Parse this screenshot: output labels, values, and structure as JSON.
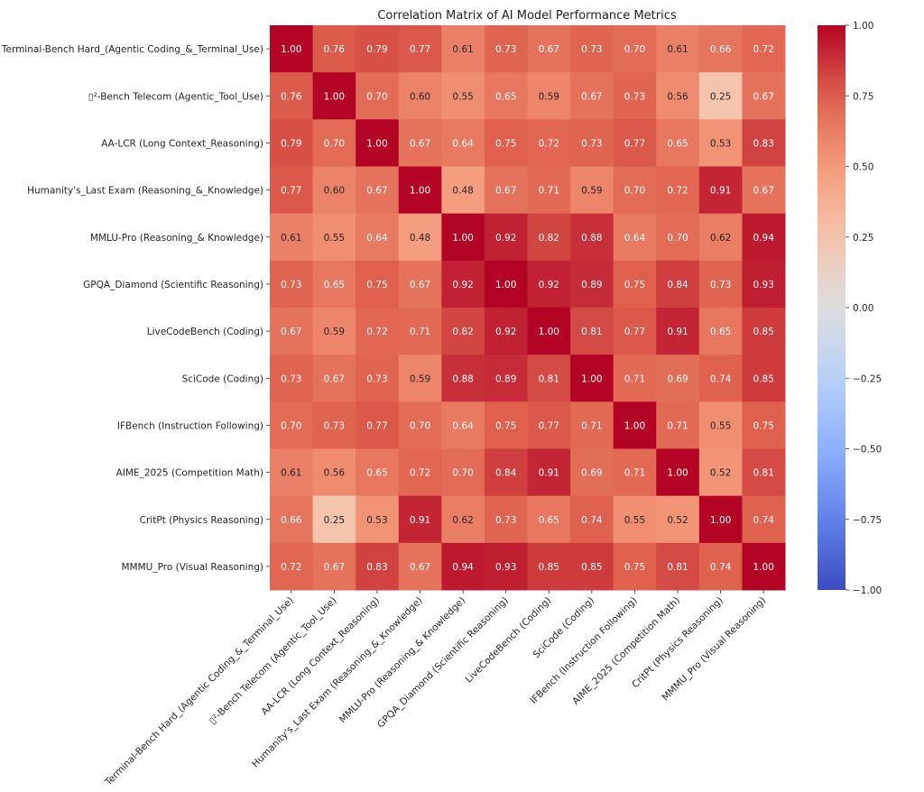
{
  "chart_data": {
    "type": "heatmap",
    "title": "Correlation Matrix of AI Model Performance Metrics",
    "xlabel": "",
    "ylabel": "",
    "labels": [
      "Terminal-Bench Hard_(Agentic Coding_&_Terminal_Use)",
      "▯²-Bench Telecom (Agentic_Tool_Use)",
      "AA-LCR (Long Context_Reasoning)",
      "Humanity's_Last Exam (Reasoning_&_Knowledge)",
      "MMLU-Pro (Reasoning_& Knowledge)",
      "GPQA_Diamond (Scientific Reasoning)",
      "LiveCodeBench (Coding)",
      "SciCode (Coding)",
      "IFBench (Instruction Following)",
      "AIME_2025 (Competition Math)",
      "CritPt (Physics Reasoning)",
      "MMMU_Pro (Visual Reasoning)"
    ],
    "matrix": [
      [
        1.0,
        0.76,
        0.79,
        0.77,
        0.61,
        0.73,
        0.67,
        0.73,
        0.7,
        0.61,
        0.66,
        0.72
      ],
      [
        0.76,
        1.0,
        0.7,
        0.6,
        0.55,
        0.65,
        0.59,
        0.67,
        0.73,
        0.56,
        0.25,
        0.67
      ],
      [
        0.79,
        0.7,
        1.0,
        0.67,
        0.64,
        0.75,
        0.72,
        0.73,
        0.77,
        0.65,
        0.53,
        0.83
      ],
      [
        0.77,
        0.6,
        0.67,
        1.0,
        0.48,
        0.67,
        0.71,
        0.59,
        0.7,
        0.72,
        0.91,
        0.67
      ],
      [
        0.61,
        0.55,
        0.64,
        0.48,
        1.0,
        0.92,
        0.82,
        0.88,
        0.64,
        0.7,
        0.62,
        0.94
      ],
      [
        0.73,
        0.65,
        0.75,
        0.67,
        0.92,
        1.0,
        0.92,
        0.89,
        0.75,
        0.84,
        0.73,
        0.93
      ],
      [
        0.67,
        0.59,
        0.72,
        0.71,
        0.82,
        0.92,
        1.0,
        0.81,
        0.77,
        0.91,
        0.65,
        0.85
      ],
      [
        0.73,
        0.67,
        0.73,
        0.59,
        0.88,
        0.89,
        0.81,
        1.0,
        0.71,
        0.69,
        0.74,
        0.85
      ],
      [
        0.7,
        0.73,
        0.77,
        0.7,
        0.64,
        0.75,
        0.77,
        0.71,
        1.0,
        0.71,
        0.55,
        0.75
      ],
      [
        0.61,
        0.56,
        0.65,
        0.72,
        0.7,
        0.84,
        0.91,
        0.69,
        0.71,
        1.0,
        0.52,
        0.81
      ],
      [
        0.66,
        0.25,
        0.53,
        0.91,
        0.62,
        0.73,
        0.65,
        0.74,
        0.55,
        0.52,
        1.0,
        0.74
      ],
      [
        0.72,
        0.67,
        0.83,
        0.67,
        0.94,
        0.93,
        0.85,
        0.85,
        0.75,
        0.81,
        0.74,
        1.0
      ]
    ],
    "value_format": "0.00",
    "colormap": "coolwarm",
    "vmin": -1.0,
    "vmax": 1.0,
    "colorbar": {
      "ticks": [
        1.0,
        0.75,
        0.5,
        0.25,
        0.0,
        -0.25,
        -0.5,
        -0.75,
        -1.0
      ],
      "tick_labels": [
        "1.00",
        "0.75",
        "0.50",
        "0.25",
        "0.00",
        "−0.25",
        "−0.50",
        "−0.75",
        "−1.00"
      ],
      "placement": "right"
    },
    "xtick_rotation_deg": 45,
    "grid": false
  }
}
